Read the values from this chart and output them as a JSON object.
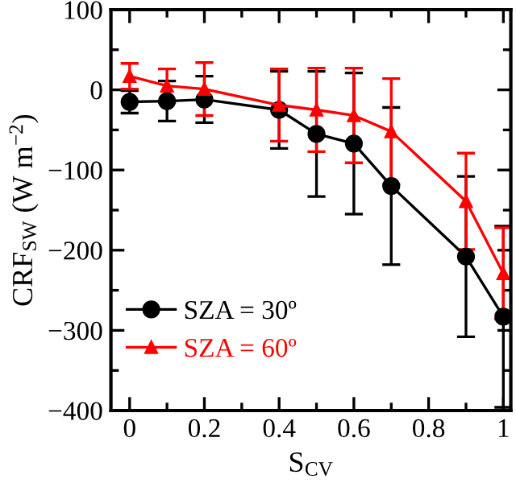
{
  "chart_data": {
    "type": "line",
    "xlabel": "S$_{CV}$",
    "ylabel": "CRF$_{SW}$ (W m$^{−2}$)",
    "x": [
      0,
      0.1,
      0.2,
      0.4,
      0.5,
      0.6,
      0.7,
      0.9,
      1.0
    ],
    "series": [
      {
        "name": "SZA = 30º",
        "color": "#000000",
        "marker": "circle",
        "values": [
          -15,
          -14,
          -12,
          -25,
          -55,
          -67,
          -120,
          -208,
          -283
        ],
        "errors": [
          14,
          25,
          29,
          48,
          78,
          88,
          98,
          100,
          113
        ]
      },
      {
        "name": "SZA = 60º",
        "color": "#ff0000",
        "marker": "triangle",
        "values": [
          17,
          5,
          1,
          -19,
          -25,
          -32,
          -52,
          -139,
          -229
        ],
        "errors": [
          16,
          21,
          33,
          45,
          52,
          59,
          66,
          60,
          57
        ]
      }
    ],
    "xlim": [
      -0.05,
      1.02
    ],
    "xticks": [
      0,
      0.2,
      0.4,
      0.6,
      0.8,
      1
    ],
    "ylim": [
      -400,
      100
    ],
    "yticks": [
      -400,
      -300,
      -200,
      -100,
      0,
      100
    ],
    "legend": "bottom left",
    "grid": false
  }
}
